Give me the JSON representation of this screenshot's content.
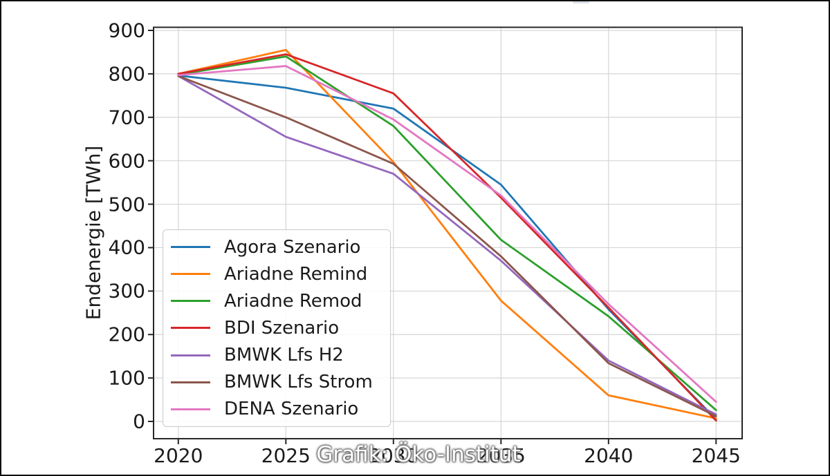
{
  "figure": {
    "background": "#ffffff",
    "border_color": "#0e0e0e"
  },
  "watermark": {
    "text": "Grafik: Öko-Institut"
  },
  "chart_data": {
    "type": "line",
    "title": "",
    "xlabel": "",
    "ylabel": "Endenergie [TWh]",
    "x": [
      2020,
      2025,
      2030,
      2035,
      2040,
      2045
    ],
    "x_tick_labels": [
      "2020",
      "2025",
      "2030",
      "2035",
      "2040",
      "2045"
    ],
    "y_ticks": [
      0,
      100,
      200,
      300,
      400,
      500,
      600,
      700,
      800,
      900
    ],
    "ylim": [
      0,
      900
    ],
    "grid": true,
    "grid_color": "#d5d5d5",
    "legend_position": "center-left",
    "series": [
      {
        "name": "Agora Szenario",
        "color": "#1f77b4",
        "values": [
          796,
          768,
          720,
          545,
          258,
          5
        ]
      },
      {
        "name": "Ariadne Remind",
        "color": "#ff7f0e",
        "values": [
          800,
          855,
          597,
          278,
          60,
          7
        ]
      },
      {
        "name": "Ariadne Remod",
        "color": "#2ca02c",
        "values": [
          798,
          840,
          680,
          418,
          242,
          26
        ]
      },
      {
        "name": "BDI Szenario",
        "color": "#d62728",
        "values": [
          800,
          845,
          755,
          515,
          262,
          2
        ]
      },
      {
        "name": "BMWK Lfs H2",
        "color": "#9467bd",
        "values": [
          795,
          655,
          570,
          370,
          140,
          16
        ]
      },
      {
        "name": "BMWK Lfs Strom",
        "color": "#8c564b",
        "values": [
          795,
          700,
          593,
          380,
          134,
          12
        ]
      },
      {
        "name": "DENA Szenario",
        "color": "#e377c2",
        "values": [
          797,
          818,
          695,
          520,
          270,
          45
        ]
      }
    ]
  }
}
